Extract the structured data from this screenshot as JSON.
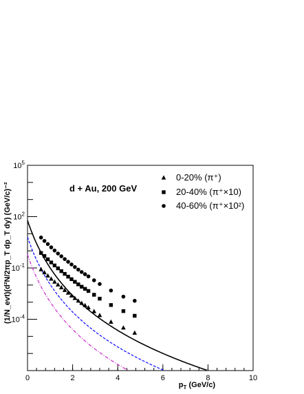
{
  "chart_data": {
    "type": "scatter",
    "annotation": "d + Au, 200 GeV",
    "xlabel_main": "p",
    "xlabel_sub": "T",
    "xlabel_rest": " (GeV/c)",
    "ylabel": "(1/N_evt)(d²N/2πp_T dp_T dy) (GeV/c)⁻²",
    "xlim": [
      0,
      10
    ],
    "ylim_log10": [
      -7,
      5
    ],
    "x_ticks": [
      0,
      2,
      4,
      6,
      8,
      10
    ],
    "y_ticks": [
      {
        "exp": 5,
        "label": "10",
        "sup": "5"
      },
      {
        "exp": 2,
        "label": "10",
        "sup": "2"
      },
      {
        "exp": -1,
        "label": "10",
        "sup": "-1"
      },
      {
        "exp": -4,
        "label": "10",
        "sup": "-4"
      }
    ],
    "legend": {
      "placement": "top-right",
      "entries": [
        {
          "marker": "triangle",
          "text": "0-20% (π⁺)"
        },
        {
          "marker": "square",
          "text": "20-40% (π⁺×10)"
        },
        {
          "marker": "circle",
          "text": "40-60% (π⁺×10²)"
        }
      ]
    },
    "series": [
      {
        "marker": "circle",
        "color": "#000000",
        "points": [
          [
            0.6,
            6.0
          ],
          [
            0.75,
            3.8
          ],
          [
            0.9,
            2.5
          ],
          [
            1.05,
            1.6
          ],
          [
            1.2,
            1.05
          ],
          [
            1.35,
            0.7
          ],
          [
            1.5,
            0.48
          ],
          [
            1.65,
            0.33
          ],
          [
            1.8,
            0.23
          ],
          [
            1.95,
            0.16
          ],
          [
            2.1,
            0.113
          ],
          [
            2.25,
            0.08
          ],
          [
            2.4,
            0.058
          ],
          [
            2.55,
            0.043
          ],
          [
            2.7,
            0.032
          ],
          [
            2.95,
            0.019
          ],
          [
            3.2,
            0.0115
          ],
          [
            3.7,
            0.0048
          ],
          [
            4.25,
            0.0021
          ],
          [
            4.75,
            0.0012
          ]
        ],
        "fit": {
          "style": "solid",
          "color": "#000000",
          "y0": 60,
          "p0": 1.0,
          "n": 9.2
        }
      },
      {
        "marker": "square",
        "color": "#000000",
        "points": [
          [
            0.6,
            0.75
          ],
          [
            0.75,
            0.5
          ],
          [
            0.9,
            0.32
          ],
          [
            1.05,
            0.21
          ],
          [
            1.2,
            0.14
          ],
          [
            1.35,
            0.095
          ],
          [
            1.5,
            0.065
          ],
          [
            1.65,
            0.045
          ],
          [
            1.8,
            0.031
          ],
          [
            1.95,
            0.022
          ],
          [
            2.1,
            0.0155
          ],
          [
            2.25,
            0.011
          ],
          [
            2.4,
            0.008
          ],
          [
            2.55,
            0.006
          ],
          [
            2.7,
            0.0045
          ],
          [
            2.95,
            0.0027
          ],
          [
            3.2,
            0.0016
          ],
          [
            3.7,
            0.00068
          ],
          [
            4.25,
            0.0003
          ],
          [
            4.75,
            0.00016
          ]
        ],
        "fit": {
          "style": "dashed",
          "color": "#1a1aff",
          "y0": 6.5,
          "p0": 1.0,
          "n": 9.2
        }
      },
      {
        "marker": "triangle",
        "color": "#000000",
        "points": [
          [
            0.6,
            0.082
          ],
          [
            0.75,
            0.054
          ],
          [
            0.9,
            0.035
          ],
          [
            1.05,
            0.023
          ],
          [
            1.2,
            0.0155
          ],
          [
            1.35,
            0.0105
          ],
          [
            1.5,
            0.0072
          ],
          [
            1.65,
            0.005
          ],
          [
            1.8,
            0.0035
          ],
          [
            1.95,
            0.0024
          ],
          [
            2.1,
            0.0017
          ],
          [
            2.25,
            0.0012
          ],
          [
            2.4,
            0.00088
          ],
          [
            2.55,
            0.00065
          ],
          [
            2.7,
            0.00048
          ],
          [
            2.95,
            0.00029
          ],
          [
            3.2,
            0.00017
          ],
          [
            3.7,
            7e-05
          ],
          [
            4.25,
            3.2e-05
          ],
          [
            4.75,
            1.6e-05
          ]
        ],
        "fit": {
          "style": "dashdot",
          "color": "#cc33cc",
          "y0": 0.62,
          "p0": 1.0,
          "n": 9.2
        }
      }
    ]
  }
}
